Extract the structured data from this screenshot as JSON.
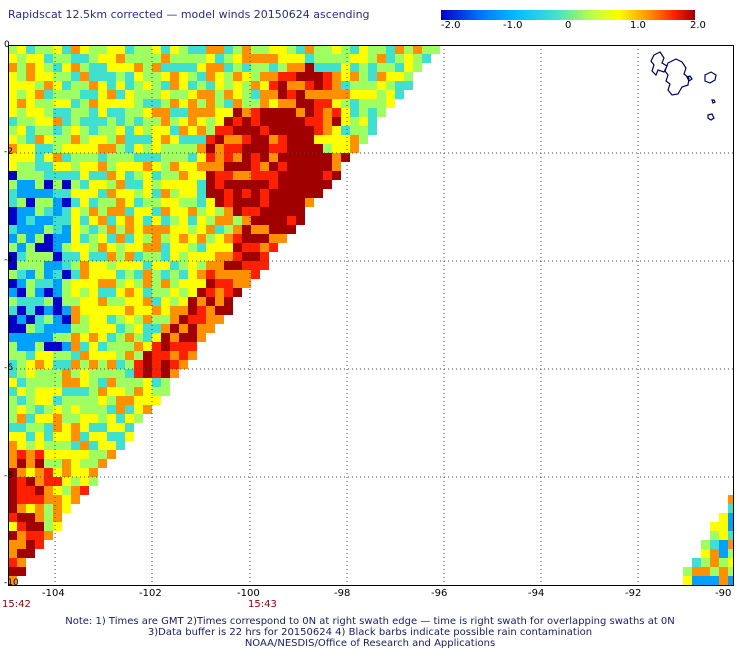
{
  "title": "Rapidscat 12.5km corrected — model winds 20150624 ascending",
  "colorbar": {
    "labels": [
      "-2.0",
      "-1.0",
      "0",
      "1.0",
      "2.0"
    ],
    "min": -2.0,
    "max": 2.0,
    "colors": [
      "#0000c8",
      "#00a0ff",
      "#40e0d0",
      "#a0ff60",
      "#ffff00",
      "#ff9000",
      "#ff2000",
      "#a00000"
    ]
  },
  "axes": {
    "lon_ticks": [
      "-104",
      "-102",
      "-100",
      "-98",
      "-96",
      "-94",
      "-92",
      "-90"
    ],
    "lat_ticks": [
      "0",
      "-2",
      "-4",
      "-6",
      "-8",
      "-10"
    ]
  },
  "times": {
    "left": "15:42",
    "center": "15:43"
  },
  "notes": [
    "Note: 1) Times are GMT 2)Times correspond to 0N at right swath edge — time is right swath for overlapping swaths at 0N",
    "3)Data buffer is 22 hrs for 20150624 4) Black barbs indicate possible rain contamination",
    "NOAA/NESDIS/Office of Research and Applications"
  ]
}
